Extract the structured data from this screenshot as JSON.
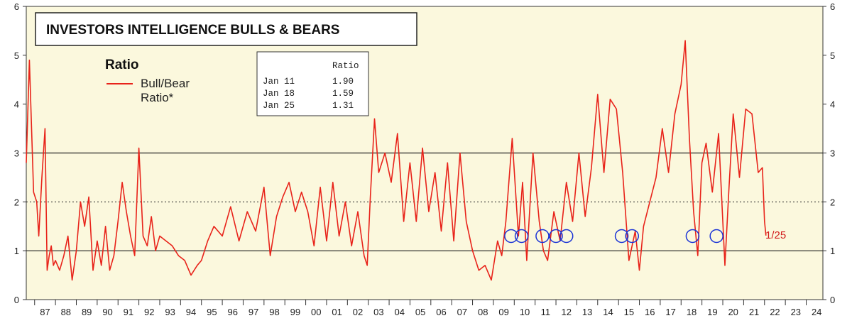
{
  "chart_data": {
    "type": "line",
    "title": "INVESTORS INTELLIGENCE BULLS & BEARS",
    "legend": {
      "title": "Ratio",
      "entries": [
        {
          "name": "Bull/Bear Ratio*",
          "label_lines": [
            "Bull/Bear",
            "Ratio*"
          ],
          "color": "#e8231a"
        }
      ],
      "placement": "top-left"
    },
    "table": {
      "header": "Ratio",
      "rows": [
        {
          "date": "Jan 11",
          "value": "1.90"
        },
        {
          "date": "Jan 18",
          "value": "1.59"
        },
        {
          "date": "Jan 25",
          "value": "1.31"
        }
      ]
    },
    "end_label": "1/25",
    "x_tick_labels": [
      "87",
      "88",
      "89",
      "90",
      "91",
      "92",
      "93",
      "94",
      "95",
      "96",
      "97",
      "98",
      "99",
      "00",
      "01",
      "02",
      "03",
      "04",
      "05",
      "06",
      "07",
      "08",
      "09",
      "10",
      "11",
      "12",
      "13",
      "14",
      "15",
      "16",
      "17",
      "18",
      "19",
      "20",
      "21",
      "22",
      "23",
      "24"
    ],
    "xlim": [
      1986.6,
      2024.8
    ],
    "ylim": [
      0,
      6
    ],
    "y_ticks": [
      0,
      1,
      2,
      3,
      4,
      5,
      6
    ],
    "reference_lines": [
      {
        "y": 1,
        "style": "solid"
      },
      {
        "y": 2,
        "style": "dotted"
      },
      {
        "y": 3,
        "style": "solid"
      }
    ],
    "series": [
      {
        "name": "Bull/Bear Ratio*",
        "color": "#e8231a",
        "x": [
          1986.6,
          1986.75,
          1986.95,
          1987.1,
          1987.2,
          1987.35,
          1987.5,
          1987.6,
          1987.7,
          1987.8,
          1987.9,
          1988.0,
          1988.2,
          1988.4,
          1988.6,
          1988.8,
          1989.0,
          1989.2,
          1989.4,
          1989.6,
          1989.8,
          1990.0,
          1990.2,
          1990.4,
          1990.6,
          1990.8,
          1991.0,
          1991.2,
          1991.4,
          1991.6,
          1991.8,
          1992.0,
          1992.2,
          1992.4,
          1992.6,
          1992.8,
          1993.0,
          1993.3,
          1993.6,
          1993.9,
          1994.2,
          1994.5,
          1994.8,
          1995.0,
          1995.3,
          1995.6,
          1996.0,
          1996.4,
          1996.8,
          1997.2,
          1997.6,
          1998.0,
          1998.3,
          1998.6,
          1998.9,
          1999.2,
          1999.5,
          1999.8,
          2000.1,
          2000.4,
          2000.7,
          2001.0,
          2001.3,
          2001.6,
          2001.9,
          2002.2,
          2002.5,
          2002.8,
          2002.95,
          2003.1,
          2003.3,
          2003.5,
          2003.8,
          2004.1,
          2004.4,
          2004.7,
          2005.0,
          2005.3,
          2005.6,
          2005.9,
          2006.2,
          2006.5,
          2006.8,
          2007.1,
          2007.4,
          2007.7,
          2008.0,
          2008.3,
          2008.6,
          2008.9,
          2009.2,
          2009.4,
          2009.6,
          2009.9,
          2010.2,
          2010.4,
          2010.6,
          2010.9,
          2011.2,
          2011.4,
          2011.6,
          2011.9,
          2012.2,
          2012.5,
          2012.8,
          2013.1,
          2013.4,
          2013.7,
          2014.0,
          2014.3,
          2014.6,
          2014.9,
          2015.2,
          2015.5,
          2015.8,
          2016.0,
          2016.2,
          2016.5,
          2016.8,
          2017.1,
          2017.4,
          2017.7,
          2018.0,
          2018.2,
          2018.4,
          2018.6,
          2018.8,
          2019.0,
          2019.2,
          2019.5,
          2019.8,
          2020.1,
          2020.3,
          2020.5,
          2020.8,
          2021.1,
          2021.4,
          2021.7,
          2021.9,
          2022.0,
          2022.07
        ],
        "values": [
          2.8,
          4.9,
          2.2,
          2.0,
          1.3,
          2.5,
          3.5,
          0.6,
          0.9,
          1.1,
          0.7,
          0.8,
          0.6,
          0.9,
          1.3,
          0.4,
          1.0,
          2.0,
          1.5,
          2.1,
          0.6,
          1.2,
          0.7,
          1.5,
          0.6,
          0.9,
          1.6,
          2.4,
          1.8,
          1.3,
          0.9,
          3.1,
          1.3,
          1.1,
          1.7,
          1.0,
          1.3,
          1.2,
          1.1,
          0.9,
          0.8,
          0.5,
          0.7,
          0.8,
          1.2,
          1.5,
          1.3,
          1.9,
          1.2,
          1.8,
          1.4,
          2.3,
          0.9,
          1.7,
          2.1,
          2.4,
          1.8,
          2.2,
          1.8,
          1.1,
          2.3,
          1.2,
          2.4,
          1.3,
          2.0,
          1.1,
          1.8,
          0.9,
          0.7,
          2.1,
          3.7,
          2.6,
          3.0,
          2.4,
          3.4,
          1.6,
          2.8,
          1.6,
          3.1,
          1.8,
          2.6,
          1.4,
          2.8,
          1.2,
          3.0,
          1.6,
          1.0,
          0.6,
          0.7,
          0.4,
          1.2,
          0.9,
          1.6,
          3.3,
          1.3,
          2.4,
          0.8,
          3.0,
          1.6,
          1.0,
          0.8,
          1.8,
          1.2,
          2.4,
          1.6,
          3.0,
          1.7,
          2.7,
          4.2,
          2.6,
          4.1,
          3.9,
          2.6,
          0.8,
          1.4,
          0.6,
          1.5,
          2.0,
          2.5,
          3.5,
          2.6,
          3.8,
          4.4,
          5.3,
          3.3,
          1.8,
          0.9,
          2.8,
          3.2,
          2.2,
          3.4,
          0.7,
          2.3,
          3.8,
          2.5,
          3.9,
          3.8,
          2.6,
          2.7,
          1.6,
          1.31
        ]
      }
    ],
    "annotations": {
      "circle_color": "#1a33d6",
      "circles": [
        {
          "x": 2009.85,
          "y": 1.3
        },
        {
          "x": 2010.35,
          "y": 1.3
        },
        {
          "x": 2011.35,
          "y": 1.3
        },
        {
          "x": 2012.0,
          "y": 1.3
        },
        {
          "x": 2012.5,
          "y": 1.3
        },
        {
          "x": 2015.15,
          "y": 1.3
        },
        {
          "x": 2015.65,
          "y": 1.3
        },
        {
          "x": 2018.55,
          "y": 1.3
        },
        {
          "x": 2019.7,
          "y": 1.3
        }
      ]
    },
    "grid": false
  }
}
